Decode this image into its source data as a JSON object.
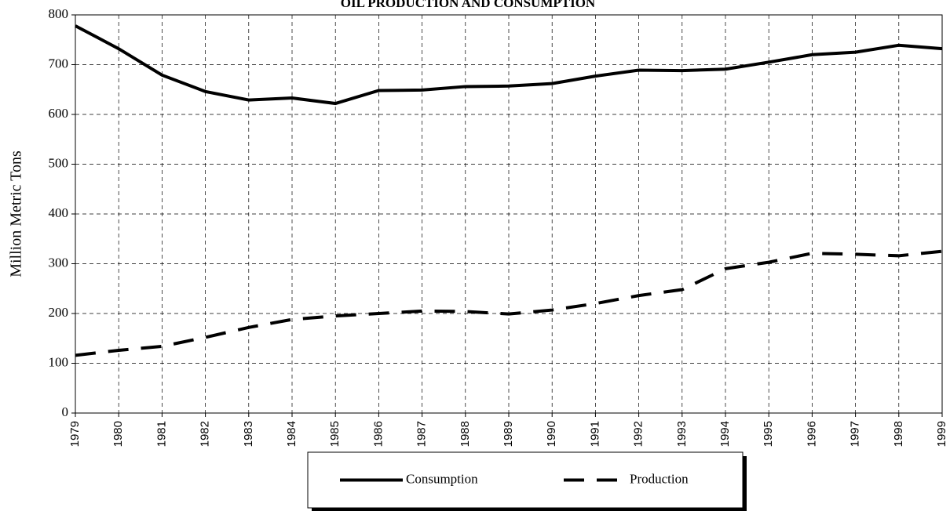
{
  "chart_data": {
    "type": "line",
    "title": "OIL PRODUCTION AND CONSUMPTION",
    "y_label": "Million Metric Tons",
    "x": [
      1979,
      1980,
      1981,
      1982,
      1983,
      1984,
      1985,
      1986,
      1987,
      1988,
      1989,
      1990,
      1991,
      1992,
      1993,
      1994,
      1995,
      1996,
      1997,
      1998,
      1999
    ],
    "series": [
      {
        "name": "Consumption",
        "color": "#000000",
        "style": "solid",
        "values": [
          778,
          732,
          679,
          646,
          629,
          633,
          622,
          648,
          649,
          656,
          657,
          662,
          677,
          689,
          688,
          691,
          705,
          720,
          725,
          739,
          732
        ]
      },
      {
        "name": "Production",
        "color": "#000000",
        "style": "dashed",
        "values": [
          116,
          126,
          134,
          152,
          172,
          188,
          195,
          200,
          205,
          204,
          199,
          207,
          220,
          236,
          248,
          290,
          303,
          321,
          319,
          316,
          325
        ]
      }
    ],
    "xlim": [
      1979,
      1999
    ],
    "xticks": [
      1979,
      1980,
      1981,
      1982,
      1983,
      1984,
      1985,
      1986,
      1987,
      1988,
      1989,
      1990,
      1991,
      1992,
      1993,
      1994,
      1995,
      1996,
      1997,
      1998,
      1999
    ],
    "ylim": [
      0,
      800
    ],
    "yticks": [
      0,
      100,
      200,
      300,
      400,
      500,
      600,
      700,
      800
    ],
    "grid": true,
    "legend": "bottom"
  }
}
